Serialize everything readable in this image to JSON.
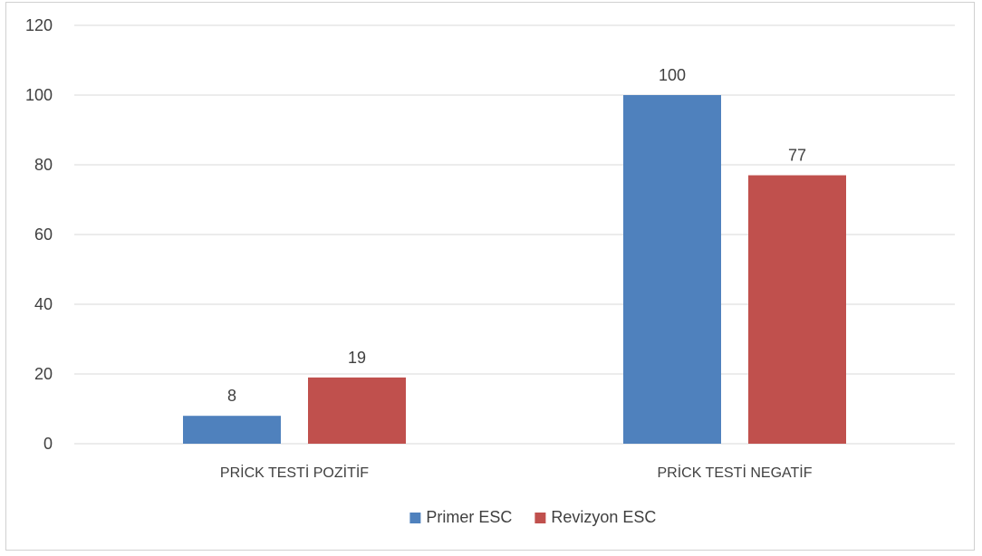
{
  "chart_data": {
    "type": "bar",
    "categories": [
      "PRİCK TESTİ POZİTİF",
      "PRİCK TESTİ NEGATİF"
    ],
    "series": [
      {
        "name": "Primer ESC",
        "values": [
          8,
          100
        ],
        "color": "#4F81BD"
      },
      {
        "name": "Revizyon ESC",
        "values": [
          19,
          77
        ],
        "color": "#C0504D"
      }
    ],
    "ylim": [
      0,
      120
    ],
    "yticks": [
      0,
      20,
      40,
      60,
      80,
      100,
      120
    ],
    "grid": true,
    "legend": "bottom-center",
    "data_labels": true
  }
}
